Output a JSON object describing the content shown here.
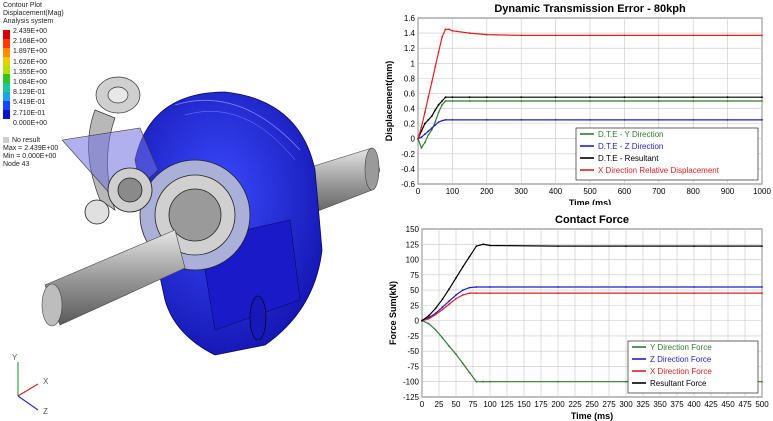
{
  "contour": {
    "header": [
      "Contour Plot",
      "Displacement(Mag)",
      "Analysis system"
    ],
    "levels": [
      "2.439E+00",
      "2.168E+00",
      "1.897E+00",
      "1.626E+00",
      "1.355E+00",
      "1.084E+00",
      "8.129E-01",
      "5.419E-01",
      "2.710E-01",
      "0.000E+00"
    ],
    "level_colors": [
      "#d40000",
      "#ff3b00",
      "#ff8c00",
      "#e8d000",
      "#b6e000",
      "#2fc51f",
      "#16c8a0",
      "#1aa4e6",
      "#1446ff",
      "#0a12c8"
    ],
    "no_result": "No result",
    "max": "Max = 2.439E+00",
    "min": "Min = 0.000E+00",
    "node": "Node 43"
  },
  "triad": {
    "x": "X",
    "y": "Y",
    "z": "Z"
  },
  "chart_data": [
    {
      "type": "line",
      "title": "Dynamic Transmission Error - 80kph",
      "xlabel": "Time (ms)",
      "ylabel": "Displacement(mm)",
      "xlim": [
        0,
        1000
      ],
      "ylim": [
        -0.6,
        1.6
      ],
      "xticks": [
        "0",
        "100",
        "200",
        "300",
        "400",
        "500",
        "600",
        "700",
        "800",
        "900",
        "1000"
      ],
      "yticks": [
        "1.6",
        "1.4",
        "1.2",
        "1",
        "0.8",
        "0.6",
        "0.4",
        "0.2",
        "0",
        "-0.2",
        "-0.4",
        "-0.6"
      ],
      "grid": true,
      "legend_position": "bottom-right",
      "series": [
        {
          "name": "D.T.E - Y Direction",
          "color": "#2e7d2e",
          "x": [
            0,
            10,
            20,
            30,
            40,
            50,
            60,
            70,
            80,
            100,
            150,
            200,
            300,
            400,
            500,
            600,
            700,
            800,
            900,
            1000
          ],
          "y": [
            0,
            -0.12,
            -0.05,
            0.05,
            0.12,
            0.22,
            0.35,
            0.45,
            0.5,
            0.5,
            0.5,
            0.5,
            0.5,
            0.5,
            0.5,
            0.5,
            0.5,
            0.5,
            0.5,
            0.5
          ]
        },
        {
          "name": "D.T.E - Z Direction",
          "color": "#1f1fd0",
          "x": [
            0,
            10,
            20,
            30,
            40,
            50,
            60,
            70,
            80,
            100,
            200,
            300,
            400,
            500,
            600,
            700,
            800,
            900,
            1000
          ],
          "y": [
            0,
            0.02,
            0.06,
            0.1,
            0.14,
            0.18,
            0.22,
            0.24,
            0.25,
            0.25,
            0.25,
            0.25,
            0.25,
            0.25,
            0.25,
            0.25,
            0.25,
            0.25,
            0.25
          ]
        },
        {
          "name": "D.T.E - Resultant",
          "color": "#000000",
          "x": [
            0,
            10,
            20,
            30,
            40,
            50,
            60,
            70,
            80,
            100,
            150,
            200,
            300,
            400,
            500,
            600,
            700,
            800,
            900,
            1000
          ],
          "y": [
            0,
            0.1,
            0.2,
            0.25,
            0.3,
            0.38,
            0.45,
            0.5,
            0.55,
            0.55,
            0.55,
            0.55,
            0.55,
            0.55,
            0.55,
            0.55,
            0.55,
            0.55,
            0.55,
            0.55
          ]
        },
        {
          "name": "X Direction Relative Displacement",
          "color": "#e02020",
          "x": [
            0,
            10,
            20,
            30,
            40,
            50,
            60,
            70,
            80,
            90,
            100,
            150,
            200,
            300,
            400,
            500,
            600,
            700,
            800,
            900,
            1000
          ],
          "y": [
            0,
            0.15,
            0.35,
            0.55,
            0.75,
            0.95,
            1.15,
            1.35,
            1.45,
            1.45,
            1.43,
            1.4,
            1.38,
            1.37,
            1.37,
            1.37,
            1.37,
            1.37,
            1.37,
            1.37,
            1.37
          ]
        }
      ]
    },
    {
      "type": "line",
      "title": "Contact Force",
      "xlabel": "Time (ms)",
      "ylabel": "Force Sum(kN)",
      "xlim": [
        0,
        500
      ],
      "ylim": [
        -125,
        150
      ],
      "xticks": [
        "0",
        "25",
        "50",
        "75",
        "100",
        "125",
        "150",
        "175",
        "200",
        "225",
        "250",
        "275",
        "300",
        "325",
        "350",
        "375",
        "400",
        "425",
        "450",
        "475",
        "500"
      ],
      "yticks": [
        "150",
        "125",
        "100",
        "75",
        "50",
        "25",
        "0",
        "-25",
        "-50",
        "-75",
        "-100",
        "-125"
      ],
      "grid": true,
      "legend_position": "bottom-right",
      "series": [
        {
          "name": "Y Direction Force",
          "color": "#2e7d2e",
          "x": [
            0,
            10,
            20,
            30,
            40,
            50,
            60,
            70,
            80,
            90,
            100,
            200,
            300,
            400,
            500
          ],
          "y": [
            0,
            -5,
            -15,
            -28,
            -42,
            -55,
            -70,
            -85,
            -100,
            -100,
            -100,
            -100,
            -100,
            -100,
            -100
          ]
        },
        {
          "name": "Z Direction Force",
          "color": "#1f1fd0",
          "x": [
            0,
            10,
            20,
            30,
            40,
            50,
            60,
            70,
            80,
            100,
            200,
            300,
            400,
            500
          ],
          "y": [
            0,
            5,
            12,
            22,
            32,
            42,
            50,
            54,
            55,
            55,
            55,
            55,
            55,
            55
          ]
        },
        {
          "name": "X Direction Force",
          "color": "#e02020",
          "x": [
            0,
            10,
            20,
            30,
            40,
            50,
            60,
            70,
            80,
            100,
            200,
            300,
            400,
            500
          ],
          "y": [
            0,
            3,
            10,
            18,
            27,
            36,
            42,
            45,
            45,
            45,
            45,
            45,
            45,
            45
          ]
        },
        {
          "name": "Resultant Force",
          "color": "#000000",
          "x": [
            0,
            10,
            20,
            30,
            40,
            50,
            60,
            70,
            80,
            90,
            100,
            200,
            300,
            400,
            500
          ],
          "y": [
            0,
            8,
            20,
            35,
            52,
            70,
            88,
            105,
            122,
            125,
            123,
            122,
            122,
            122,
            122
          ]
        }
      ]
    }
  ]
}
